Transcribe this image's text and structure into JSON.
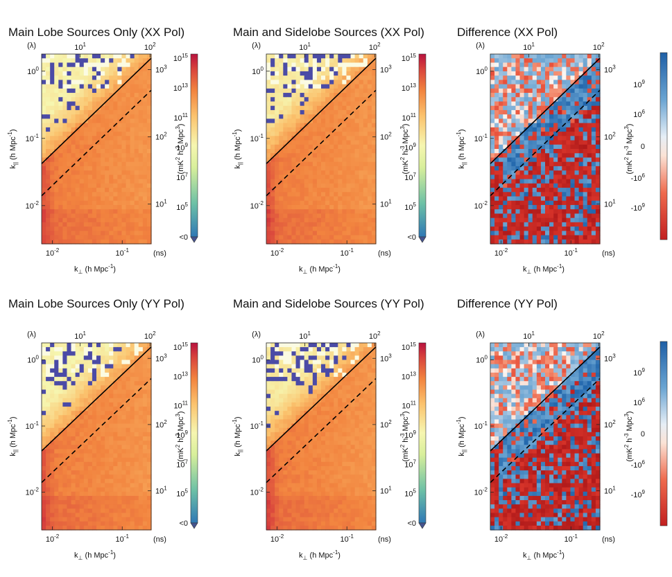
{
  "figure": {
    "description_text": null
  },
  "colors": {
    "heat_low": "#2f78b5",
    "heat_mid": "#f2f5a8",
    "heat_high": "#b8123e",
    "diff_pos": "#2166ac",
    "diff_neg": "#c21f1f",
    "diff_zero": "#faf7f4",
    "nan_fill": "#4b4ba6",
    "wedge_line": "#000000"
  },
  "axis_text": {
    "kperp_sym": "k",
    "kperp_sub": "⊥",
    "kperp_unit": " (h Mpc",
    "kperp_exp": "-1",
    "kperp_close": ")",
    "kpar_sym": "k",
    "kpar_sub": "||",
    "lambda_label": "(λ)",
    "ns_label": "(ns)",
    "cb_unit_main": "(mK",
    "cb_unit_2": "2",
    "cb_unit_h": " h",
    "cb_unit_m3": "-3",
    "cb_unit_mpc": " Mpc",
    "cb_unit_3": "3",
    "cb_unit_close": ")",
    "kpar_ticks": [
      {
        "base": "10",
        "exp": "0"
      },
      {
        "base": "10",
        "exp": "-1"
      },
      {
        "base": "10",
        "exp": "-2"
      }
    ],
    "kperp_ticks": [
      {
        "base": "10",
        "exp": "-2"
      },
      {
        "base": "10",
        "exp": "-1"
      }
    ],
    "lambda_ticks": [
      {
        "base": "10",
        "exp": "1"
      },
      {
        "base": "10",
        "exp": "2"
      }
    ],
    "ns_ticks": [
      {
        "base": "10",
        "exp": "3"
      },
      {
        "base": "10",
        "exp": "2"
      },
      {
        "base": "10",
        "exp": "1"
      }
    ]
  },
  "colorbars": {
    "power": {
      "ticks": [
        {
          "base": "10",
          "exp": "15"
        },
        {
          "base": "10",
          "exp": "13"
        },
        {
          "base": "10",
          "exp": "11"
        },
        {
          "base": "10",
          "exp": "9"
        },
        {
          "base": "10",
          "exp": "7"
        },
        {
          "base": "10",
          "exp": "5"
        },
        {
          "base": "<0",
          "exp": ""
        }
      ]
    },
    "diff": {
      "ticks": [
        {
          "base": "10",
          "exp": "9"
        },
        {
          "base": "10",
          "exp": "6"
        },
        {
          "base": "0",
          "exp": ""
        },
        {
          "base": "-10",
          "exp": "6"
        },
        {
          "base": "-10",
          "exp": "9"
        }
      ]
    }
  },
  "chart_data": [
    {
      "type": "heatmap",
      "title": "Main Lobe Sources Only (XX Pol)",
      "pol": "XX",
      "kind": "power",
      "sidelobes": false,
      "seed": 11,
      "x_label": "k⊥ (h Mpc^-1)",
      "y_label": "k|| (h Mpc^-1)",
      "xlim": [
        0.007,
        0.26
      ],
      "ylim": [
        0.0027,
        1.8
      ],
      "colorbar_label": "(mK^2 h^-3 Mpc^3)",
      "colorbar_range_log10": [
        5,
        15
      ],
      "wedge_slope_solid": 6.0,
      "wedge_slope_dashed": 2.0
    },
    {
      "type": "heatmap",
      "title": "Main and Sidelobe Sources (XX Pol)",
      "pol": "XX",
      "kind": "power",
      "sidelobes": true,
      "seed": 23,
      "x_label": "k⊥ (h Mpc^-1)",
      "y_label": "k|| (h Mpc^-1)",
      "xlim": [
        0.007,
        0.26
      ],
      "ylim": [
        0.0027,
        1.8
      ],
      "colorbar_label": "(mK^2 h^-3 Mpc^3)",
      "colorbar_range_log10": [
        5,
        15
      ],
      "wedge_slope_solid": 6.0,
      "wedge_slope_dashed": 2.0
    },
    {
      "type": "heatmap",
      "title": "Difference (XX Pol)",
      "pol": "XX",
      "kind": "difference",
      "seed": 37,
      "x_label": "k⊥ (h Mpc^-1)",
      "y_label": "k|| (h Mpc^-1)",
      "xlim": [
        0.007,
        0.26
      ],
      "ylim": [
        0.0027,
        1.8
      ],
      "colorbar_label": "(mK^2 h^-3 Mpc^3)",
      "colorbar_ticks": [
        "10^9",
        "10^6",
        "0",
        "-10^6",
        "-10^9"
      ],
      "wedge_slope_solid": 6.0,
      "wedge_slope_dashed": 2.0
    },
    {
      "type": "heatmap",
      "title": "Main Lobe Sources Only (YY Pol)",
      "pol": "YY",
      "kind": "power",
      "sidelobes": false,
      "seed": 41,
      "x_label": "k⊥ (h Mpc^-1)",
      "y_label": "k|| (h Mpc^-1)",
      "xlim": [
        0.007,
        0.26
      ],
      "ylim": [
        0.0027,
        1.8
      ],
      "colorbar_label": "(mK^2 h^-3 Mpc^3)",
      "colorbar_range_log10": [
        5,
        15
      ],
      "wedge_slope_solid": 6.0,
      "wedge_slope_dashed": 2.0
    },
    {
      "type": "heatmap",
      "title": "Main and Sidelobe Sources (YY Pol)",
      "pol": "YY",
      "kind": "power",
      "sidelobes": true,
      "seed": 53,
      "x_label": "k⊥ (h Mpc^-1)",
      "y_label": "k|| (h Mpc^-1)",
      "xlim": [
        0.007,
        0.26
      ],
      "ylim": [
        0.0027,
        1.8
      ],
      "colorbar_label": "(mK^2 h^-3 Mpc^3)",
      "colorbar_range_log10": [
        5,
        15
      ],
      "wedge_slope_solid": 6.0,
      "wedge_slope_dashed": 2.0
    },
    {
      "type": "heatmap",
      "title": "Difference (YY Pol)",
      "pol": "YY",
      "kind": "difference",
      "seed": 67,
      "x_label": "k⊥ (h Mpc^-1)",
      "y_label": "k|| (h Mpc^-1)",
      "xlim": [
        0.007,
        0.26
      ],
      "ylim": [
        0.0027,
        1.8
      ],
      "colorbar_label": "(mK^2 h^-3 Mpc^3)",
      "colorbar_ticks": [
        "10^9",
        "10^6",
        "0",
        "-10^6",
        "-10^9"
      ],
      "wedge_slope_solid": 6.0,
      "wedge_slope_dashed": 2.0
    }
  ]
}
